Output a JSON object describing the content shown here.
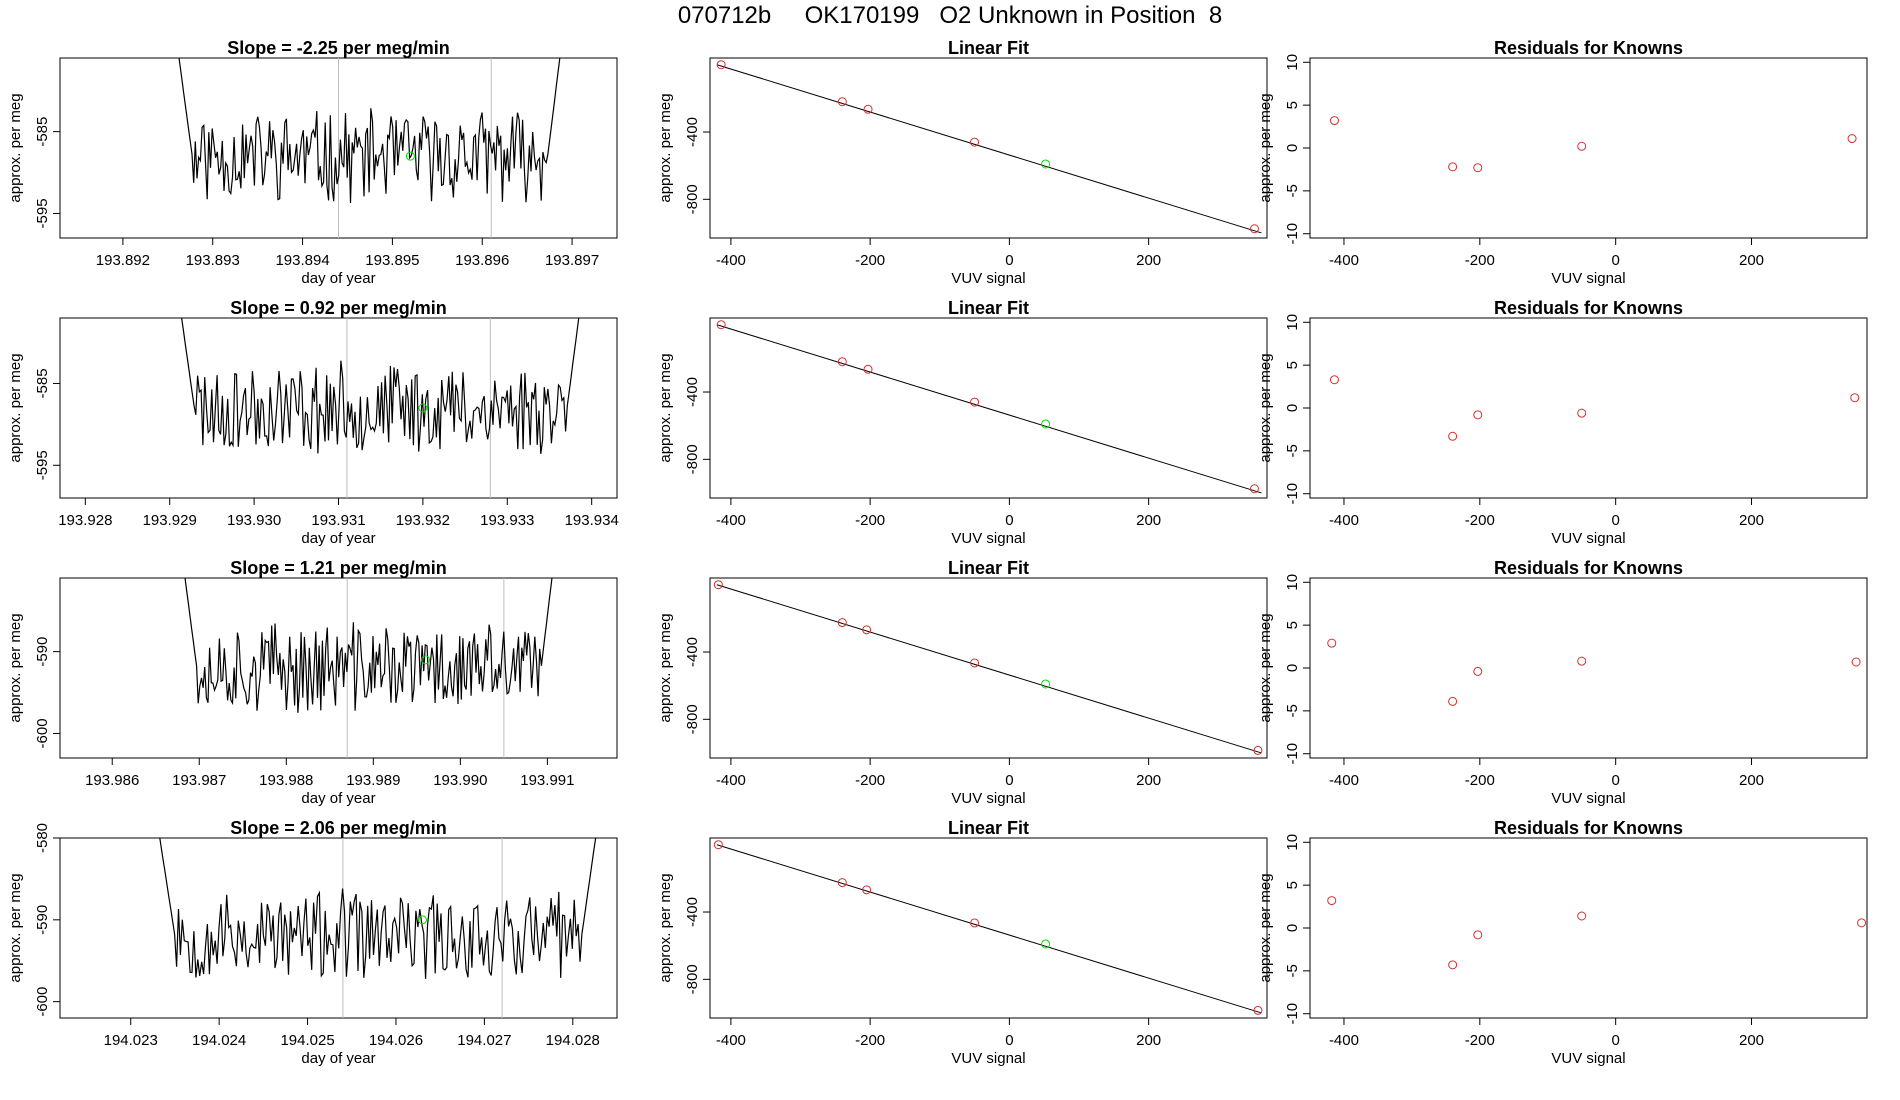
{
  "figure": {
    "title": "070712b     OK170199   O2 Unknown in Position  8"
  },
  "colors": {
    "line": "#000000",
    "known_point": "#cd3333",
    "unknown_point": "#00dd00",
    "vline": "#bebebe"
  },
  "chart_data": [
    {
      "type": "line",
      "title": "Slope =  -2.25  per meg/min",
      "xlabel": "day of year",
      "ylabel": "approx. per meg",
      "xlim": [
        193.8913,
        193.8975
      ],
      "ylim": [
        -598,
        -576
      ],
      "xticks": [
        193.892,
        193.893,
        193.894,
        193.895,
        193.896,
        193.897
      ],
      "xtick_labels": [
        "193.892",
        "193.893",
        "193.894",
        "193.895",
        "193.896",
        "193.897"
      ],
      "yticks": [
        -585,
        -595
      ],
      "ytick_labels": [
        "-585",
        "-595"
      ],
      "vlines": [
        193.8944,
        193.8961
      ],
      "highlight_point": [
        193.8952,
        -588
      ],
      "series_start": 193.8926,
      "series_end": 193.8969,
      "series_center": -588,
      "series_amplitude": 5,
      "seed": 11
    },
    {
      "type": "scatter",
      "title": "Linear Fit",
      "xlabel": "VUV signal",
      "ylabel": "approx. per meg",
      "xlim": [
        -430,
        370
      ],
      "ylim": [
        -1030,
        40
      ],
      "xticks": [
        -400,
        -200,
        0,
        200
      ],
      "xtick_labels": [
        "-400",
        "-200",
        "0",
        "200"
      ],
      "yticks": [
        -400,
        -800
      ],
      "ytick_labels": [
        "-400",
        "-800"
      ],
      "fit_line": [
        [
          -420,
          0
        ],
        [
          362,
          -1000
        ]
      ],
      "known_x": [
        -414,
        -240,
        -203,
        -50,
        352
      ],
      "known_y": [
        0,
        -220,
        -265,
        -460,
        -975
      ],
      "unknown_x": [
        52
      ],
      "unknown_y": [
        -590
      ]
    },
    {
      "type": "scatter",
      "title": "Residuals for Knowns",
      "xlabel": "VUV signal",
      "ylabel": "approx. per meg",
      "xlim": [
        -450,
        370
      ],
      "ylim": [
        -10.5,
        10.5
      ],
      "xticks": [
        -400,
        -200,
        0,
        200
      ],
      "xtick_labels": [
        "-400",
        "-200",
        "0",
        "200"
      ],
      "yticks": [
        10,
        5,
        0,
        -5,
        -10
      ],
      "ytick_labels": [
        "10",
        "5",
        "0",
        "-5",
        "-10"
      ],
      "x": [
        -414,
        -240,
        -203,
        -50,
        348
      ],
      "y": [
        3.2,
        -2.2,
        -2.3,
        0.2,
        1.1
      ]
    },
    {
      "type": "line",
      "title": "Slope =  0.92  per meg/min",
      "xlabel": "day of year",
      "ylabel": "approx. per meg",
      "xlim": [
        193.9277,
        193.9343
      ],
      "ylim": [
        -599,
        -577
      ],
      "xticks": [
        193.928,
        193.929,
        193.93,
        193.931,
        193.932,
        193.933,
        193.934
      ],
      "xtick_labels": [
        "193.928",
        "193.929",
        "193.930",
        "193.931",
        "193.932",
        "193.933",
        "193.934"
      ],
      "vlines": [
        193.9311,
        193.9328
      ],
      "yticks": [
        -585,
        -595
      ],
      "ytick_labels": [
        "-585",
        "-595"
      ],
      "highlight_point": [
        193.932,
        -588
      ],
      "series_start": 193.9291,
      "series_end": 193.9339,
      "series_center": -588,
      "series_amplitude": 5,
      "seed": 23
    },
    {
      "type": "scatter",
      "title": "Linear Fit",
      "xlabel": "VUV signal",
      "ylabel": "approx. per meg",
      "xlim": [
        -430,
        370
      ],
      "ylim": [
        -1030,
        40
      ],
      "xticks": [
        -400,
        -200,
        0,
        200
      ],
      "xtick_labels": [
        "-400",
        "-200",
        "0",
        "200"
      ],
      "yticks": [
        -400,
        -800
      ],
      "ytick_labels": [
        "-400",
        "-800"
      ],
      "fit_line": [
        [
          -420,
          0
        ],
        [
          362,
          -1000
        ]
      ],
      "known_x": [
        -414,
        -240,
        -203,
        -50,
        352
      ],
      "known_y": [
        0,
        -220,
        -265,
        -460,
        -975
      ],
      "unknown_x": [
        52
      ],
      "unknown_y": [
        -590
      ]
    },
    {
      "type": "scatter",
      "title": "Residuals for Knowns",
      "xlabel": "VUV signal",
      "ylabel": "approx. per meg",
      "xlim": [
        -450,
        370
      ],
      "ylim": [
        -10.5,
        10.5
      ],
      "xticks": [
        -400,
        -200,
        0,
        200
      ],
      "xtick_labels": [
        "-400",
        "-200",
        "0",
        "200"
      ],
      "yticks": [
        10,
        5,
        0,
        -5,
        -10
      ],
      "ytick_labels": [
        "10",
        "5",
        "0",
        "-5",
        "-10"
      ],
      "x": [
        -414,
        -240,
        -203,
        -50,
        352
      ],
      "y": [
        3.3,
        -3.3,
        -0.8,
        -0.6,
        1.2
      ]
    },
    {
      "type": "line",
      "title": "Slope =  1.21  per meg/min",
      "xlabel": "day of year",
      "ylabel": "approx. per meg",
      "xlim": [
        193.9854,
        193.9918
      ],
      "ylim": [
        -603,
        -581
      ],
      "xticks": [
        193.986,
        193.987,
        193.988,
        193.989,
        193.99,
        193.991
      ],
      "xtick_labels": [
        "193.986",
        "193.987",
        "193.988",
        "193.989",
        "193.990",
        "193.991"
      ],
      "yticks": [
        -590,
        -600
      ],
      "ytick_labels": [
        "-590",
        "-600"
      ],
      "vlines": [
        193.9887,
        193.9905
      ],
      "highlight_point": [
        193.9896,
        -591
      ],
      "series_start": 193.9868,
      "series_end": 193.9911,
      "series_center": -592,
      "series_amplitude": 5,
      "seed": 37
    },
    {
      "type": "scatter",
      "title": "Linear Fit",
      "xlabel": "VUV signal",
      "ylabel": "approx. per meg",
      "xlim": [
        -430,
        370
      ],
      "ylim": [
        -1030,
        40
      ],
      "xticks": [
        -400,
        -200,
        0,
        200
      ],
      "xtick_labels": [
        "-400",
        "-200",
        "0",
        "200"
      ],
      "yticks": [
        -400,
        -800
      ],
      "ytick_labels": [
        "-400",
        "-800"
      ],
      "fit_line": [
        [
          -420,
          0
        ],
        [
          362,
          -1000
        ]
      ],
      "known_x": [
        -418,
        -240,
        -205,
        -50,
        357
      ],
      "known_y": [
        0,
        -225,
        -268,
        -465,
        -985
      ],
      "unknown_x": [
        52
      ],
      "unknown_y": [
        -590
      ]
    },
    {
      "type": "scatter",
      "title": "Residuals for Knowns",
      "xlabel": "VUV signal",
      "ylabel": "approx. per meg",
      "xlim": [
        -450,
        370
      ],
      "ylim": [
        -10.5,
        10.5
      ],
      "xticks": [
        -400,
        -200,
        0,
        200
      ],
      "xtick_labels": [
        "-400",
        "-200",
        "0",
        "200"
      ],
      "yticks": [
        10,
        5,
        0,
        -5,
        -10
      ],
      "ytick_labels": [
        "10",
        "5",
        "0",
        "-5",
        "-10"
      ],
      "x": [
        -418,
        -240,
        -203,
        -50,
        354
      ],
      "y": [
        2.9,
        -3.9,
        -0.4,
        0.8,
        0.7
      ]
    },
    {
      "type": "line",
      "title": "Slope =  2.06  per meg/min",
      "xlabel": "day of year",
      "ylabel": "approx. per meg",
      "xlim": [
        194.0222,
        194.0285
      ],
      "ylim": [
        -602,
        -580
      ],
      "xticks": [
        194.023,
        194.024,
        194.025,
        194.026,
        194.027,
        194.028
      ],
      "xtick_labels": [
        "194.023",
        "194.024",
        "194.025",
        "194.026",
        "194.027",
        "194.028"
      ],
      "yticks": [
        -580,
        -590,
        -600
      ],
      "ytick_labels": [
        "-580",
        "-590",
        "-600"
      ],
      "vlines": [
        194.0254,
        194.0272
      ],
      "highlight_point": [
        194.0263,
        -590
      ],
      "series_start": 194.0233,
      "series_end": 194.0283,
      "series_center": -592,
      "series_amplitude": 5,
      "seed": 53
    },
    {
      "type": "scatter",
      "title": "Linear Fit",
      "xlabel": "VUV signal",
      "ylabel": "approx. per meg",
      "xlim": [
        -430,
        370
      ],
      "ylim": [
        -1030,
        40
      ],
      "xticks": [
        -400,
        -200,
        0,
        200
      ],
      "xtick_labels": [
        "-400",
        "-200",
        "0",
        "200"
      ],
      "yticks": [
        -400,
        -800
      ],
      "ytick_labels": [
        "-400",
        "-800"
      ],
      "fit_line": [
        [
          -420,
          0
        ],
        [
          362,
          -1000
        ]
      ],
      "known_x": [
        -418,
        -240,
        -205,
        -50,
        357
      ],
      "known_y": [
        0,
        -225,
        -268,
        -465,
        -985
      ],
      "unknown_x": [
        52
      ],
      "unknown_y": [
        -590
      ]
    },
    {
      "type": "scatter",
      "title": "Residuals for Knowns",
      "xlabel": "VUV signal",
      "ylabel": "approx. per meg",
      "xlim": [
        -450,
        370
      ],
      "ylim": [
        -10.5,
        10.5
      ],
      "xticks": [
        -400,
        -200,
        0,
        200
      ],
      "xtick_labels": [
        "-400",
        "-200",
        "0",
        "200"
      ],
      "yticks": [
        10,
        5,
        0,
        -5,
        -10
      ],
      "ytick_labels": [
        "10",
        "5",
        "0",
        "-5",
        "-10"
      ],
      "x": [
        -418,
        -240,
        -203,
        -50,
        362
      ],
      "y": [
        3.2,
        -4.3,
        -0.8,
        1.4,
        0.6
      ]
    }
  ]
}
